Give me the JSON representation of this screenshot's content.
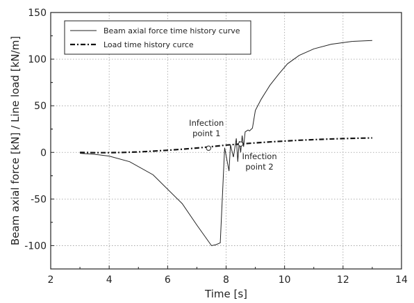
{
  "chart_data": {
    "type": "line",
    "title": "",
    "xlabel": "Time [s]",
    "ylabel": "Beam axial force [kN] / Line load [kN/m]",
    "xlim": [
      2,
      14
    ],
    "ylim": [
      -125,
      150
    ],
    "xticks": [
      2,
      4,
      6,
      8,
      10,
      12,
      14
    ],
    "yticks": [
      -100,
      -50,
      0,
      50,
      100,
      150
    ],
    "grid": true,
    "legend_position": "top-left",
    "series": [
      {
        "name": "Beam axial force time history curve",
        "style": "solid",
        "color": "#222222",
        "x": [
          3.0,
          3.5,
          4.0,
          4.7,
          5.5,
          6.5,
          7.0,
          7.5,
          7.65,
          7.8,
          7.95,
          8.1,
          8.15,
          8.25,
          8.35,
          8.4,
          8.45,
          8.5,
          8.55,
          8.6,
          8.65,
          8.75,
          8.8,
          8.9,
          9.0,
          9.2,
          9.5,
          9.8,
          10.1,
          10.5,
          11.0,
          11.6,
          12.3,
          13.0
        ],
        "values": [
          -1,
          -2,
          -4,
          -10,
          -24,
          -55,
          -78,
          -100,
          -99,
          -97,
          5,
          -20,
          8,
          -5,
          15,
          -10,
          12,
          0,
          18,
          6,
          22,
          24,
          23,
          26,
          45,
          57,
          72,
          84,
          95,
          104,
          111,
          116,
          119,
          120
        ]
      },
      {
        "name": "Load time history curce",
        "style": "dash-dot",
        "color": "#111111",
        "x": [
          3.0,
          3.5,
          4.0,
          4.5,
          5.0,
          5.5,
          6.0,
          6.5,
          7.0,
          7.5,
          8.0,
          8.5,
          9.0,
          9.5,
          10.0,
          10.5,
          11.0,
          11.5,
          12.0,
          12.5,
          13.0
        ],
        "values": [
          0,
          -0.3,
          -0.3,
          0,
          0.5,
          1.3,
          2.3,
          3.4,
          4.7,
          6.2,
          7.8,
          9.0,
          10.2,
          11.2,
          12.1,
          13.0,
          13.7,
          14.3,
          14.8,
          15.2,
          15.5
        ]
      }
    ],
    "markers": [
      {
        "x": 7.4,
        "y": 4.5,
        "label_line1": "Infection",
        "label_line2": "point 1"
      },
      {
        "x": 8.5,
        "y": 9.0,
        "label_line1": "Infection",
        "label_line2": "point 2"
      }
    ]
  }
}
